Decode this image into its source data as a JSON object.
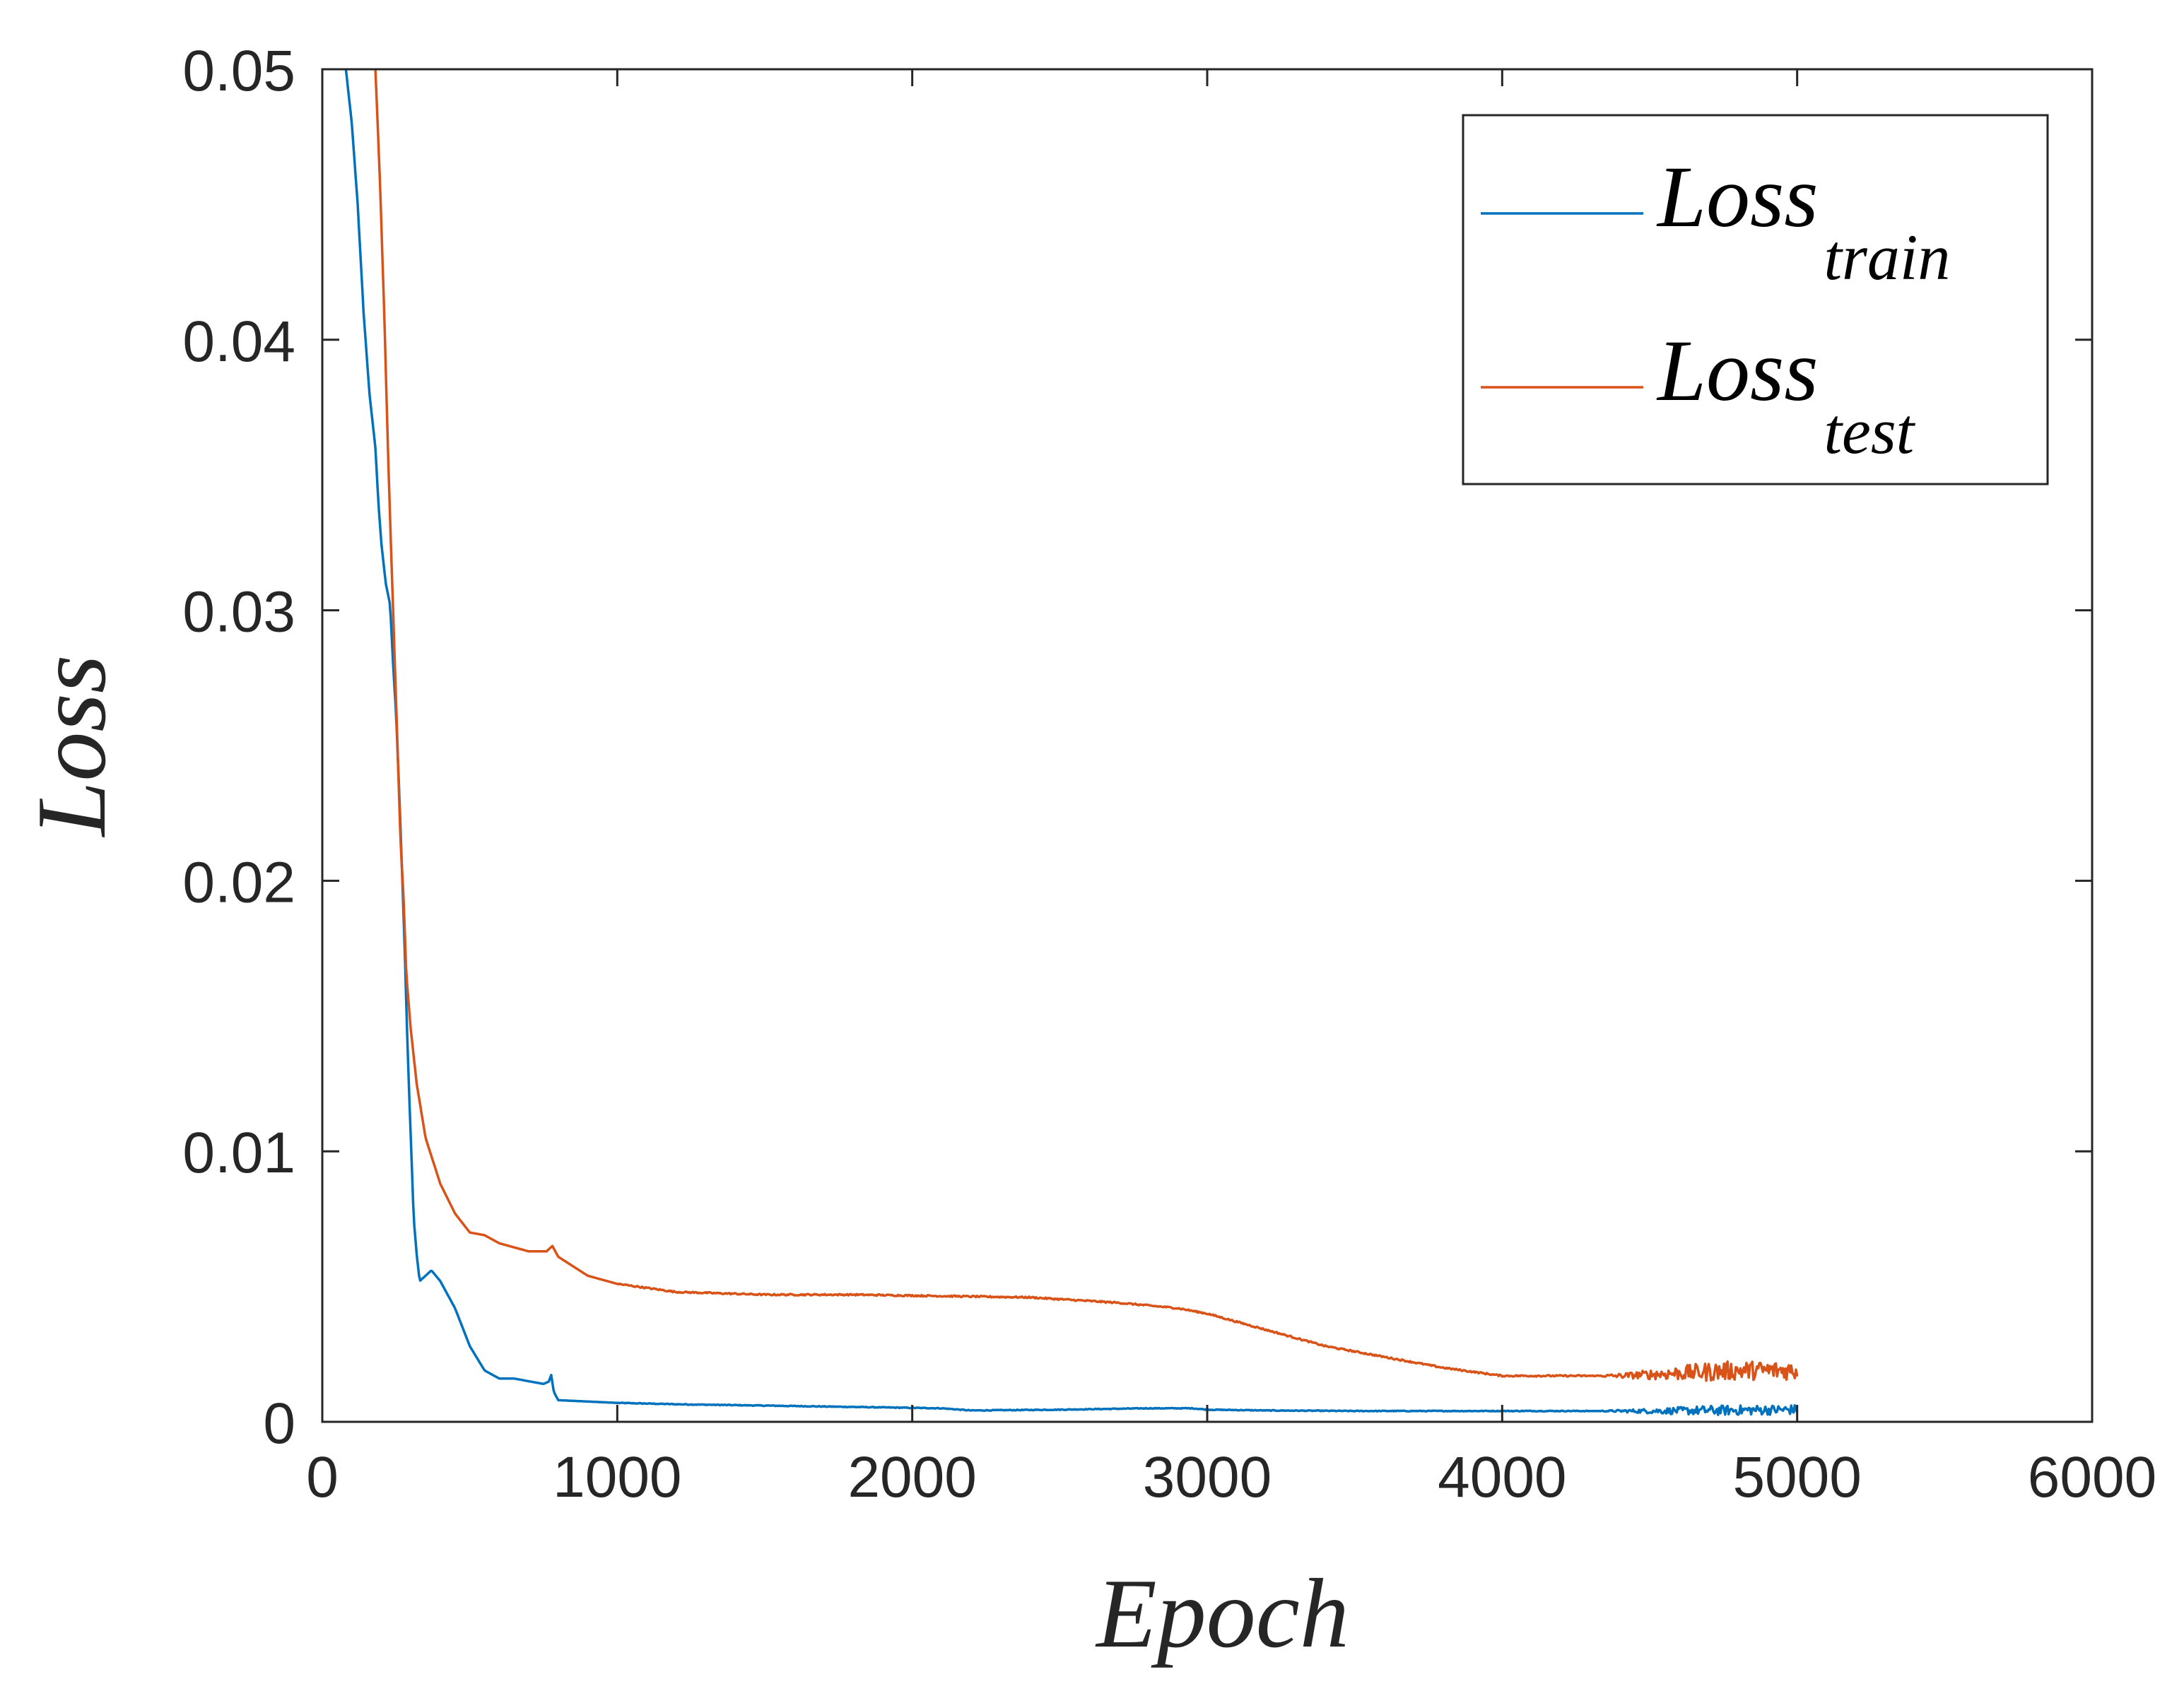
{
  "chart_data": {
    "type": "line",
    "title": "",
    "xlabel": "Epoch",
    "ylabel": "Loss",
    "xlim": [
      0,
      6000
    ],
    "ylim": [
      0,
      0.05
    ],
    "xticks": [
      0,
      1000,
      2000,
      3000,
      4000,
      5000,
      6000
    ],
    "xtick_labels": [
      "0",
      "1000",
      "2000",
      "3000",
      "4000",
      "5000",
      "6000"
    ],
    "yticks": [
      0,
      0.01,
      0.02,
      0.03,
      0.04,
      0.05
    ],
    "ytick_labels": [
      "0",
      "0.01",
      "0.02",
      "0.03",
      "0.04",
      "0.05"
    ],
    "grid": false,
    "legend_position": "top-right",
    "series": [
      {
        "name": "Loss_train",
        "legend_main": "Loss",
        "legend_sub": "train",
        "color": "#0072BD",
        "noise_from_epoch": 4300,
        "noise_amplitude": 0.00018,
        "points": [
          [
            80,
            0.05
          ],
          [
            100,
            0.048
          ],
          [
            120,
            0.045
          ],
          [
            140,
            0.041
          ],
          [
            160,
            0.038
          ],
          [
            180,
            0.036
          ],
          [
            190,
            0.034
          ],
          [
            200,
            0.0325
          ],
          [
            215,
            0.031
          ],
          [
            230,
            0.0302
          ],
          [
            240,
            0.028
          ],
          [
            250,
            0.0262
          ],
          [
            260,
            0.0235
          ],
          [
            270,
            0.0205
          ],
          [
            280,
            0.0172
          ],
          [
            290,
            0.0135
          ],
          [
            300,
            0.0105
          ],
          [
            310,
            0.0075
          ],
          [
            320,
            0.0062
          ],
          [
            330,
            0.0052
          ],
          [
            350,
            0.0054
          ],
          [
            370,
            0.0056
          ],
          [
            400,
            0.0052
          ],
          [
            450,
            0.0042
          ],
          [
            500,
            0.0028
          ],
          [
            550,
            0.0019
          ],
          [
            600,
            0.0016
          ],
          [
            650,
            0.0016
          ],
          [
            700,
            0.0015
          ],
          [
            750,
            0.0014
          ],
          [
            770,
            0.0015
          ],
          [
            775,
            0.0018
          ],
          [
            785,
            0.0011
          ],
          [
            800,
            0.0008
          ],
          [
            900,
            0.00075
          ],
          [
            1000,
            0.0007
          ],
          [
            1200,
            0.00065
          ],
          [
            1500,
            0.0006
          ],
          [
            1800,
            0.00055
          ],
          [
            2100,
            0.0005
          ],
          [
            2200,
            0.00042
          ],
          [
            2500,
            0.00045
          ],
          [
            2800,
            0.0005
          ],
          [
            2950,
            0.0005
          ],
          [
            3000,
            0.00045
          ],
          [
            3200,
            0.00042
          ],
          [
            3500,
            0.0004
          ],
          [
            3800,
            0.0004
          ],
          [
            4100,
            0.0004
          ],
          [
            4500,
            0.0004
          ],
          [
            5000,
            0.00045
          ]
        ]
      },
      {
        "name": "Loss_test",
        "legend_main": "Loss",
        "legend_sub": "test",
        "color": "#D95319",
        "noise_from_epoch": 4300,
        "noise_amplitude": 0.00035,
        "points": [
          [
            180,
            0.05
          ],
          [
            195,
            0.046
          ],
          [
            210,
            0.041
          ],
          [
            225,
            0.035
          ],
          [
            240,
            0.03
          ],
          [
            255,
            0.025
          ],
          [
            265,
            0.0215
          ],
          [
            275,
            0.0195
          ],
          [
            285,
            0.0165
          ],
          [
            300,
            0.0145
          ],
          [
            320,
            0.0125
          ],
          [
            350,
            0.0105
          ],
          [
            400,
            0.0088
          ],
          [
            450,
            0.0077
          ],
          [
            500,
            0.007
          ],
          [
            550,
            0.0069
          ],
          [
            600,
            0.0066
          ],
          [
            700,
            0.0063
          ],
          [
            760,
            0.0063
          ],
          [
            780,
            0.0065
          ],
          [
            800,
            0.0061
          ],
          [
            900,
            0.0054
          ],
          [
            1000,
            0.0051
          ],
          [
            1200,
            0.0048
          ],
          [
            1500,
            0.0047
          ],
          [
            1800,
            0.0047
          ],
          [
            2100,
            0.00465
          ],
          [
            2400,
            0.0046
          ],
          [
            2700,
            0.0044
          ],
          [
            2900,
            0.0042
          ],
          [
            3000,
            0.004
          ],
          [
            3200,
            0.0034
          ],
          [
            3400,
            0.0028
          ],
          [
            3600,
            0.0024
          ],
          [
            3800,
            0.002
          ],
          [
            4000,
            0.0017
          ],
          [
            4200,
            0.0017
          ],
          [
            4400,
            0.0017
          ],
          [
            4600,
            0.0018
          ],
          [
            4800,
            0.0019
          ],
          [
            5000,
            0.0019
          ]
        ]
      }
    ]
  }
}
